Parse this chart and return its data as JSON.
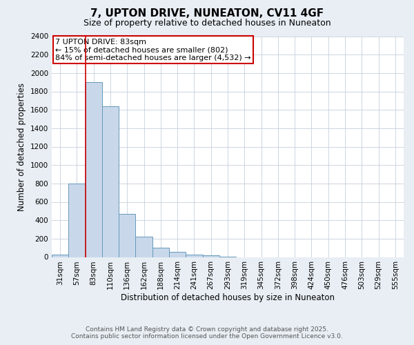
{
  "title": "7, UPTON DRIVE, NUNEATON, CV11 4GF",
  "subtitle": "Size of property relative to detached houses in Nuneaton",
  "xlabel": "Distribution of detached houses by size in Nuneaton",
  "ylabel": "Number of detached properties",
  "categories": [
    "31sqm",
    "57sqm",
    "83sqm",
    "110sqm",
    "136sqm",
    "162sqm",
    "188sqm",
    "214sqm",
    "241sqm",
    "267sqm",
    "293sqm",
    "319sqm",
    "345sqm",
    "372sqm",
    "398sqm",
    "424sqm",
    "450sqm",
    "476sqm",
    "503sqm",
    "529sqm",
    "555sqm"
  ],
  "values": [
    30,
    800,
    1900,
    1640,
    470,
    220,
    100,
    55,
    30,
    20,
    5,
    0,
    0,
    0,
    0,
    0,
    0,
    0,
    0,
    0,
    0
  ],
  "bar_color": "#c8d8ea",
  "bar_edge_color": "#6699bb",
  "ylim": [
    0,
    2400
  ],
  "yticks": [
    0,
    200,
    400,
    600,
    800,
    1000,
    1200,
    1400,
    1600,
    1800,
    2000,
    2200,
    2400
  ],
  "red_line_index": 2,
  "annotation_text": "7 UPTON DRIVE: 83sqm\n← 15% of detached houses are smaller (802)\n84% of semi-detached houses are larger (4,532) →",
  "annotation_box_color": "#ffffff",
  "annotation_box_edge_color": "#cc0000",
  "footer_line1": "Contains HM Land Registry data © Crown copyright and database right 2025.",
  "footer_line2": "Contains public sector information licensed under the Open Government Licence v3.0.",
  "bg_color": "#e8eef4",
  "plot_bg_color": "#ffffff",
  "title_fontsize": 11,
  "subtitle_fontsize": 9,
  "axis_label_fontsize": 8.5,
  "tick_fontsize": 7.5,
  "footer_fontsize": 6.5,
  "annotation_fontsize": 8
}
